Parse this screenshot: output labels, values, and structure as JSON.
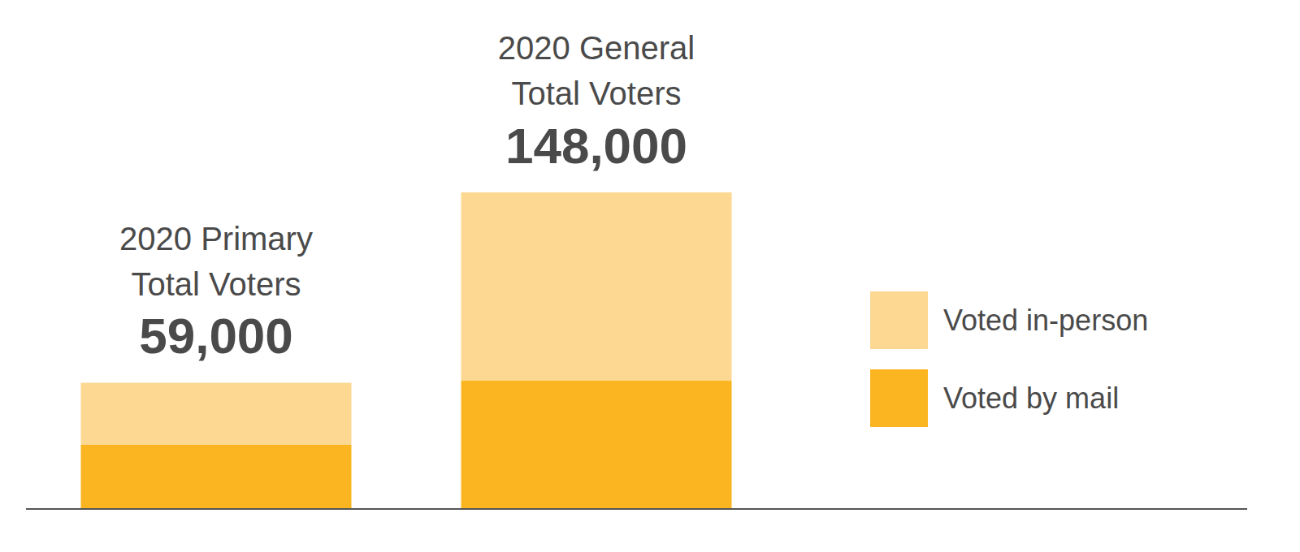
{
  "chart_data": {
    "type": "bar",
    "categories": [
      "2020 Primary",
      "2020 General"
    ],
    "total_label": "Total Voters",
    "totals": [
      59000,
      148000
    ],
    "total_labels": [
      "59,000",
      "148,000"
    ],
    "series": [
      {
        "name": "Voted by mail",
        "color": "#fbb520",
        "values": [
          30000,
          60000
        ]
      },
      {
        "name": "Voted in-person",
        "color": "#fdd892",
        "values": [
          29000,
          88000
        ]
      }
    ],
    "stacked": true,
    "legend": "right",
    "grid": false,
    "tick_labels": false
  }
}
